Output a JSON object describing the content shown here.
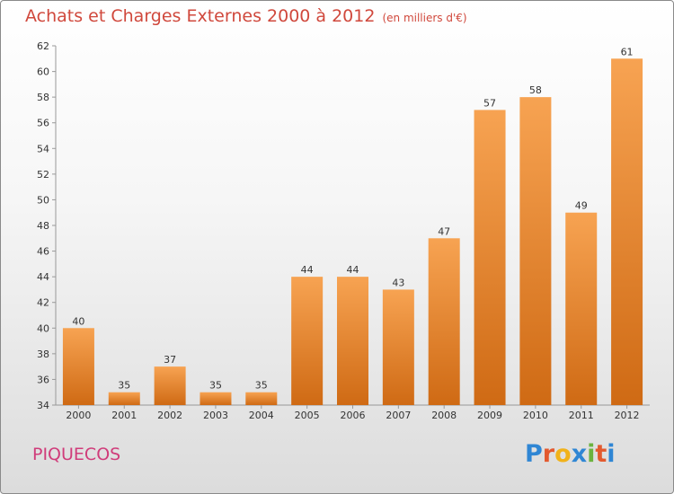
{
  "header": {
    "title": "Achats et Charges Externes 2000 à 2012",
    "unit": "(en milliers d'€)"
  },
  "footer": {
    "town": "PIQUECOS",
    "logo": [
      "P",
      "r",
      "o",
      "x",
      "i",
      "t",
      "i"
    ]
  },
  "colors": {
    "bar_top": "#f7a352",
    "bar_bottom": "#cf6a14",
    "title": "#d0483c",
    "town": "#d03c7a"
  },
  "chart_data": {
    "type": "bar",
    "title": "Achats et Charges Externes 2000 à 2012",
    "categories": [
      "2000",
      "2001",
      "2002",
      "2003",
      "2004",
      "2005",
      "2006",
      "2007",
      "2008",
      "2009",
      "2010",
      "2011",
      "2012"
    ],
    "values": [
      40,
      35,
      37,
      35,
      35,
      44,
      44,
      43,
      47,
      57,
      58,
      49,
      61
    ],
    "ylim": [
      34,
      62
    ],
    "yticks": [
      34,
      36,
      38,
      40,
      42,
      44,
      46,
      48,
      50,
      52,
      54,
      56,
      58,
      60,
      62
    ],
    "grid": false,
    "legend": "none"
  }
}
